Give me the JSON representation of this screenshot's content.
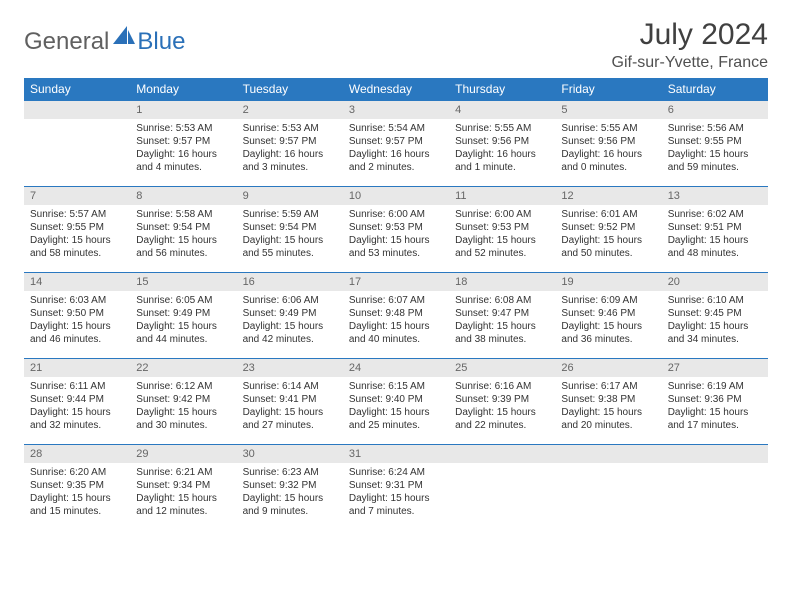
{
  "logo": {
    "textA": "General",
    "textB": "Blue"
  },
  "title": "July 2024",
  "location": "Gif-sur-Yvette, France",
  "colors": {
    "header_bg": "#2a78c0",
    "header_text": "#ffffff",
    "daynum_bg": "#e8e8e8",
    "daynum_text": "#666666",
    "body_text": "#333333",
    "rule": "#2a78c0"
  },
  "weekdays": [
    "Sunday",
    "Monday",
    "Tuesday",
    "Wednesday",
    "Thursday",
    "Friday",
    "Saturday"
  ],
  "weeks": [
    [
      null,
      {
        "n": "1",
        "sr": "Sunrise: 5:53 AM",
        "ss": "Sunset: 9:57 PM",
        "dl": "Daylight: 16 hours and 4 minutes."
      },
      {
        "n": "2",
        "sr": "Sunrise: 5:53 AM",
        "ss": "Sunset: 9:57 PM",
        "dl": "Daylight: 16 hours and 3 minutes."
      },
      {
        "n": "3",
        "sr": "Sunrise: 5:54 AM",
        "ss": "Sunset: 9:57 PM",
        "dl": "Daylight: 16 hours and 2 minutes."
      },
      {
        "n": "4",
        "sr": "Sunrise: 5:55 AM",
        "ss": "Sunset: 9:56 PM",
        "dl": "Daylight: 16 hours and 1 minute."
      },
      {
        "n": "5",
        "sr": "Sunrise: 5:55 AM",
        "ss": "Sunset: 9:56 PM",
        "dl": "Daylight: 16 hours and 0 minutes."
      },
      {
        "n": "6",
        "sr": "Sunrise: 5:56 AM",
        "ss": "Sunset: 9:55 PM",
        "dl": "Daylight: 15 hours and 59 minutes."
      }
    ],
    [
      {
        "n": "7",
        "sr": "Sunrise: 5:57 AM",
        "ss": "Sunset: 9:55 PM",
        "dl": "Daylight: 15 hours and 58 minutes."
      },
      {
        "n": "8",
        "sr": "Sunrise: 5:58 AM",
        "ss": "Sunset: 9:54 PM",
        "dl": "Daylight: 15 hours and 56 minutes."
      },
      {
        "n": "9",
        "sr": "Sunrise: 5:59 AM",
        "ss": "Sunset: 9:54 PM",
        "dl": "Daylight: 15 hours and 55 minutes."
      },
      {
        "n": "10",
        "sr": "Sunrise: 6:00 AM",
        "ss": "Sunset: 9:53 PM",
        "dl": "Daylight: 15 hours and 53 minutes."
      },
      {
        "n": "11",
        "sr": "Sunrise: 6:00 AM",
        "ss": "Sunset: 9:53 PM",
        "dl": "Daylight: 15 hours and 52 minutes."
      },
      {
        "n": "12",
        "sr": "Sunrise: 6:01 AM",
        "ss": "Sunset: 9:52 PM",
        "dl": "Daylight: 15 hours and 50 minutes."
      },
      {
        "n": "13",
        "sr": "Sunrise: 6:02 AM",
        "ss": "Sunset: 9:51 PM",
        "dl": "Daylight: 15 hours and 48 minutes."
      }
    ],
    [
      {
        "n": "14",
        "sr": "Sunrise: 6:03 AM",
        "ss": "Sunset: 9:50 PM",
        "dl": "Daylight: 15 hours and 46 minutes."
      },
      {
        "n": "15",
        "sr": "Sunrise: 6:05 AM",
        "ss": "Sunset: 9:49 PM",
        "dl": "Daylight: 15 hours and 44 minutes."
      },
      {
        "n": "16",
        "sr": "Sunrise: 6:06 AM",
        "ss": "Sunset: 9:49 PM",
        "dl": "Daylight: 15 hours and 42 minutes."
      },
      {
        "n": "17",
        "sr": "Sunrise: 6:07 AM",
        "ss": "Sunset: 9:48 PM",
        "dl": "Daylight: 15 hours and 40 minutes."
      },
      {
        "n": "18",
        "sr": "Sunrise: 6:08 AM",
        "ss": "Sunset: 9:47 PM",
        "dl": "Daylight: 15 hours and 38 minutes."
      },
      {
        "n": "19",
        "sr": "Sunrise: 6:09 AM",
        "ss": "Sunset: 9:46 PM",
        "dl": "Daylight: 15 hours and 36 minutes."
      },
      {
        "n": "20",
        "sr": "Sunrise: 6:10 AM",
        "ss": "Sunset: 9:45 PM",
        "dl": "Daylight: 15 hours and 34 minutes."
      }
    ],
    [
      {
        "n": "21",
        "sr": "Sunrise: 6:11 AM",
        "ss": "Sunset: 9:44 PM",
        "dl": "Daylight: 15 hours and 32 minutes."
      },
      {
        "n": "22",
        "sr": "Sunrise: 6:12 AM",
        "ss": "Sunset: 9:42 PM",
        "dl": "Daylight: 15 hours and 30 minutes."
      },
      {
        "n": "23",
        "sr": "Sunrise: 6:14 AM",
        "ss": "Sunset: 9:41 PM",
        "dl": "Daylight: 15 hours and 27 minutes."
      },
      {
        "n": "24",
        "sr": "Sunrise: 6:15 AM",
        "ss": "Sunset: 9:40 PM",
        "dl": "Daylight: 15 hours and 25 minutes."
      },
      {
        "n": "25",
        "sr": "Sunrise: 6:16 AM",
        "ss": "Sunset: 9:39 PM",
        "dl": "Daylight: 15 hours and 22 minutes."
      },
      {
        "n": "26",
        "sr": "Sunrise: 6:17 AM",
        "ss": "Sunset: 9:38 PM",
        "dl": "Daylight: 15 hours and 20 minutes."
      },
      {
        "n": "27",
        "sr": "Sunrise: 6:19 AM",
        "ss": "Sunset: 9:36 PM",
        "dl": "Daylight: 15 hours and 17 minutes."
      }
    ],
    [
      {
        "n": "28",
        "sr": "Sunrise: 6:20 AM",
        "ss": "Sunset: 9:35 PM",
        "dl": "Daylight: 15 hours and 15 minutes."
      },
      {
        "n": "29",
        "sr": "Sunrise: 6:21 AM",
        "ss": "Sunset: 9:34 PM",
        "dl": "Daylight: 15 hours and 12 minutes."
      },
      {
        "n": "30",
        "sr": "Sunrise: 6:23 AM",
        "ss": "Sunset: 9:32 PM",
        "dl": "Daylight: 15 hours and 9 minutes."
      },
      {
        "n": "31",
        "sr": "Sunrise: 6:24 AM",
        "ss": "Sunset: 9:31 PM",
        "dl": "Daylight: 15 hours and 7 minutes."
      },
      null,
      null,
      null
    ]
  ]
}
